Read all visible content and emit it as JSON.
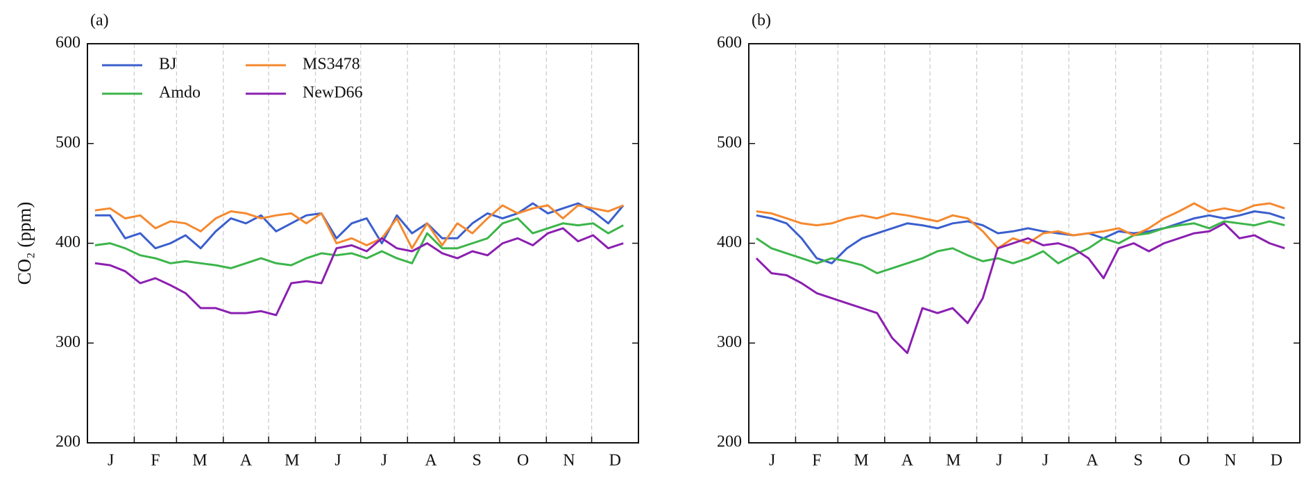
{
  "chart_data": [
    {
      "type": "line",
      "title": "(a)",
      "y_label": "CO₂ (ppm)",
      "legend": "upper left",
      "xlim": [
        0,
        365
      ],
      "xticks": [
        31,
        59,
        90,
        120,
        151,
        181,
        212,
        243,
        273,
        304,
        334
      ],
      "month_labels": [
        "J",
        "F",
        "M",
        "A",
        "M",
        "J",
        "J",
        "A",
        "S",
        "O",
        "N",
        "D"
      ],
      "ylim": [
        200,
        600
      ],
      "yticks": [
        200,
        300,
        400,
        500,
        600
      ],
      "x": [
        5,
        15,
        25,
        35,
        45,
        55,
        65,
        75,
        85,
        95,
        105,
        115,
        125,
        135,
        145,
        155,
        165,
        175,
        185,
        195,
        205,
        215,
        225,
        235,
        245,
        255,
        265,
        275,
        285,
        295,
        305,
        315,
        325,
        335,
        345,
        355
      ],
      "series": [
        {
          "name": "BJ",
          "color": "#3a5fcd",
          "values": [
            428,
            428,
            405,
            410,
            395,
            400,
            408,
            395,
            412,
            425,
            420,
            428,
            412,
            420,
            428,
            430,
            405,
            420,
            425,
            400,
            428,
            410,
            420,
            405,
            405,
            420,
            430,
            425,
            430,
            440,
            430,
            435,
            440,
            432,
            420,
            438
          ]
        },
        {
          "name": "Amdo",
          "color": "#3cb54a",
          "values": [
            398,
            400,
            395,
            388,
            385,
            380,
            382,
            380,
            378,
            375,
            380,
            385,
            380,
            378,
            385,
            390,
            388,
            390,
            385,
            392,
            385,
            380,
            410,
            395,
            395,
            400,
            405,
            420,
            425,
            410,
            415,
            420,
            418,
            420,
            410,
            418
          ]
        },
        {
          "name": "MS3478",
          "color": "#f5892f",
          "values": [
            433,
            435,
            425,
            428,
            415,
            422,
            420,
            412,
            425,
            432,
            430,
            425,
            428,
            430,
            420,
            430,
            400,
            405,
            398,
            405,
            425,
            395,
            420,
            398,
            420,
            410,
            425,
            438,
            430,
            435,
            438,
            425,
            438,
            435,
            432,
            438
          ]
        },
        {
          "name": "NewD66",
          "color": "#8b1fb0",
          "values": [
            380,
            378,
            372,
            360,
            365,
            358,
            350,
            335,
            335,
            330,
            330,
            332,
            328,
            360,
            362,
            360,
            395,
            398,
            392,
            405,
            395,
            392,
            400,
            390,
            385,
            392,
            388,
            400,
            405,
            398,
            410,
            415,
            402,
            408,
            395,
            400
          ]
        }
      ]
    },
    {
      "type": "line",
      "title": "(b)",
      "xlim": [
        0,
        365
      ],
      "xticks": [
        31,
        59,
        90,
        120,
        151,
        181,
        212,
        243,
        273,
        304,
        334
      ],
      "month_labels": [
        "J",
        "F",
        "M",
        "A",
        "M",
        "J",
        "J",
        "A",
        "S",
        "O",
        "N",
        "D"
      ],
      "ylim": [
        200,
        600
      ],
      "yticks": [
        200,
        300,
        400,
        500,
        600
      ],
      "x": [
        5,
        15,
        25,
        35,
        45,
        55,
        65,
        75,
        85,
        95,
        105,
        115,
        125,
        135,
        145,
        155,
        165,
        175,
        185,
        195,
        205,
        215,
        225,
        235,
        245,
        255,
        265,
        275,
        285,
        295,
        305,
        315,
        325,
        335,
        345,
        355
      ],
      "series": [
        {
          "name": "BJ",
          "color": "#3a5fcd",
          "values": [
            428,
            425,
            420,
            405,
            385,
            380,
            395,
            405,
            410,
            415,
            420,
            418,
            415,
            420,
            422,
            418,
            410,
            412,
            415,
            412,
            410,
            408,
            410,
            405,
            412,
            410,
            412,
            415,
            420,
            425,
            428,
            425,
            428,
            432,
            430,
            425
          ]
        },
        {
          "name": "Amdo",
          "color": "#3cb54a",
          "values": [
            405,
            395,
            390,
            385,
            380,
            385,
            382,
            378,
            370,
            375,
            380,
            385,
            392,
            395,
            388,
            382,
            385,
            380,
            385,
            392,
            380,
            388,
            395,
            405,
            400,
            408,
            410,
            415,
            418,
            420,
            415,
            422,
            420,
            418,
            422,
            418
          ]
        },
        {
          "name": "MS3478",
          "color": "#f5892f",
          "values": [
            432,
            430,
            425,
            420,
            418,
            420,
            425,
            428,
            425,
            430,
            428,
            425,
            422,
            428,
            425,
            412,
            395,
            405,
            400,
            410,
            412,
            408,
            410,
            412,
            415,
            408,
            415,
            425,
            432,
            440,
            432,
            435,
            432,
            438,
            440,
            435
          ]
        },
        {
          "name": "NewD66",
          "color": "#8b1fb0",
          "values": [
            385,
            370,
            368,
            360,
            350,
            345,
            340,
            335,
            330,
            305,
            290,
            335,
            330,
            335,
            320,
            345,
            395,
            400,
            405,
            398,
            400,
            395,
            385,
            365,
            395,
            400,
            392,
            400,
            405,
            410,
            412,
            420,
            405,
            408,
            400,
            395
          ]
        }
      ]
    }
  ]
}
